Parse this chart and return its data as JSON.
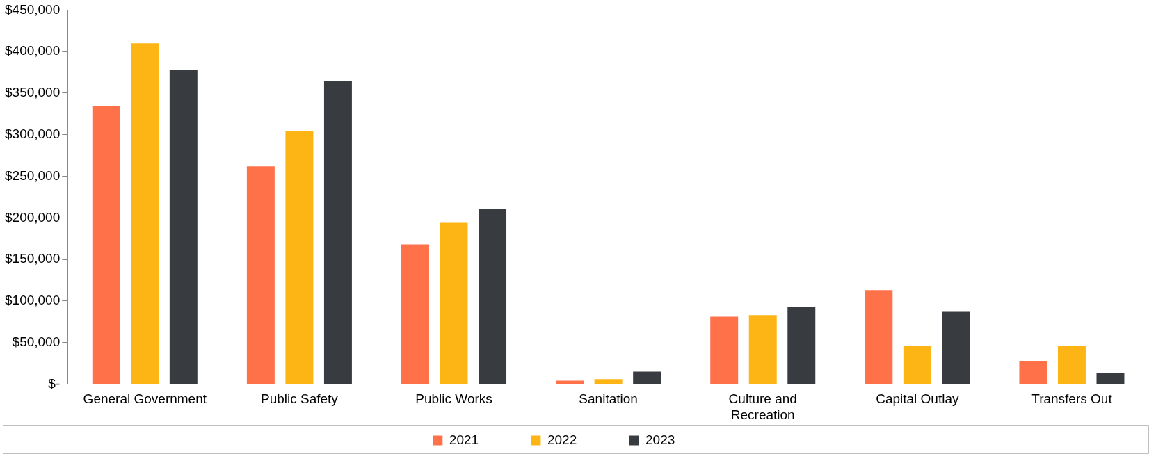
{
  "chart_data": {
    "type": "bar",
    "categories": [
      "General Government",
      "Public Safety",
      "Public Works",
      "Sanitation",
      "Culture and Recreation",
      "Capital Outlay",
      "Transfers Out"
    ],
    "series": [
      {
        "name": "2021",
        "color": "#ff7149",
        "values": [
          335000,
          262000,
          168000,
          4000,
          81000,
          113000,
          28000
        ]
      },
      {
        "name": "2022",
        "color": "#fdb515",
        "values": [
          410000,
          304000,
          194000,
          6000,
          83000,
          46000,
          46000
        ]
      },
      {
        "name": "2023",
        "color": "#383c41",
        "values": [
          378000,
          365000,
          211000,
          15000,
          93000,
          87000,
          13000
        ]
      }
    ],
    "ylim": [
      0,
      450000
    ],
    "yticks": [
      {
        "value": 0,
        "label": "$-"
      },
      {
        "value": 50000,
        "label": "$50,000"
      },
      {
        "value": 100000,
        "label": "$100,000"
      },
      {
        "value": 150000,
        "label": "$150,000"
      },
      {
        "value": 200000,
        "label": "$200,000"
      },
      {
        "value": 250000,
        "label": "$250,000"
      },
      {
        "value": 300000,
        "label": "$300,000"
      },
      {
        "value": 350000,
        "label": "$350,000"
      },
      {
        "value": 400000,
        "label": "$400,000"
      },
      {
        "value": 450000,
        "label": "$450,000"
      }
    ],
    "grid": false,
    "legend": "bottom"
  }
}
